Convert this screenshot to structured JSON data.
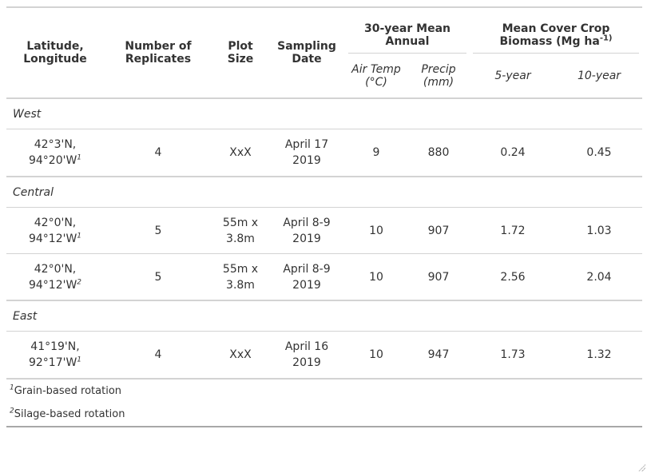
{
  "header": {
    "lat_long": "Latitude, Longitude",
    "replicates": "Number of Replicates",
    "plot_size": "Plot Size",
    "sampling_date": "Sampling Date",
    "climate_group": "30-year Mean Annual",
    "biomass_group_main": "Mean Cover Crop Biomass (Mg ha",
    "biomass_group_sup": "-1)",
    "air_temp": "Air Temp (°C)",
    "precip": "Precip (mm)",
    "five_year": "5-year",
    "ten_year": "10-year"
  },
  "groups": [
    {
      "name": "West",
      "rows": [
        {
          "lat": "42°3'N,",
          "lon": "94°20'W",
          "note": "1",
          "replicates": "4",
          "plot1": "XxX",
          "plot2": "",
          "date1": "April 17",
          "date2": "2019",
          "air_temp": "9",
          "precip": "880",
          "five_year": "0.24",
          "ten_year": "0.45"
        }
      ]
    },
    {
      "name": "Central",
      "rows": [
        {
          "lat": "42°0'N,",
          "lon": "94°12'W",
          "note": "1",
          "replicates": "5",
          "plot1": "55m x",
          "plot2": "3.8m",
          "date1": "April 8-9",
          "date2": "2019",
          "air_temp": "10",
          "precip": "907",
          "five_year": "1.72",
          "ten_year": "1.03"
        },
        {
          "lat": "42°0'N,",
          "lon": "94°12'W",
          "note": "2",
          "replicates": "5",
          "plot1": "55m x",
          "plot2": "3.8m",
          "date1": "April 8-9",
          "date2": "2019",
          "air_temp": "10",
          "precip": "907",
          "five_year": "2.56",
          "ten_year": "2.04"
        }
      ]
    },
    {
      "name": "East",
      "rows": [
        {
          "lat": "41°19'N,",
          "lon": "92°17'W",
          "note": "1",
          "replicates": "4",
          "plot1": "XxX",
          "plot2": "",
          "date1": "April 16",
          "date2": "2019",
          "air_temp": "10",
          "precip": "947",
          "five_year": "1.73",
          "ten_year": "1.32"
        }
      ]
    }
  ],
  "footnotes": [
    {
      "mark": "1",
      "text": "Grain-based rotation"
    },
    {
      "mark": "2",
      "text": "Silage-based rotation"
    }
  ]
}
